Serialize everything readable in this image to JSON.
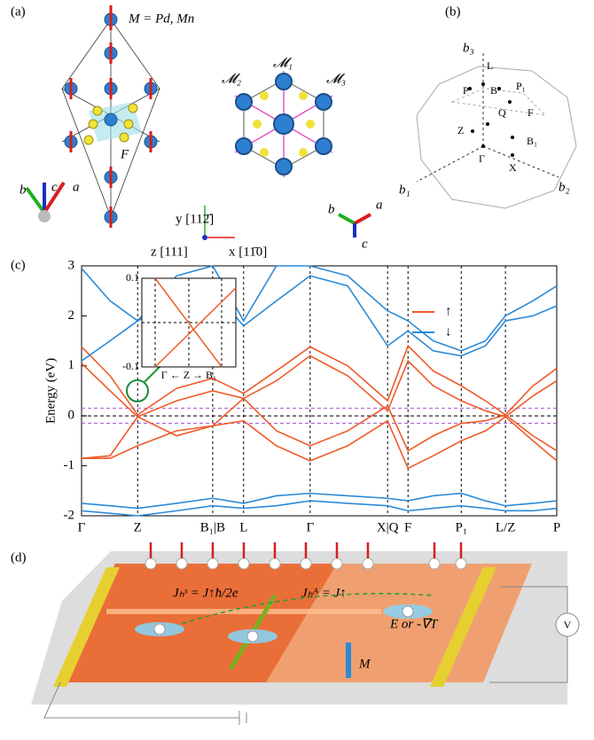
{
  "panels": {
    "a": {
      "label": "(a)",
      "formula": "M = Pd, Mn",
      "site": "F",
      "axes_left": [
        "b",
        "c",
        "a"
      ],
      "axes_mid": [
        "y [112̄]",
        "z [111]",
        "x [11̄0]"
      ],
      "sites": [
        "𝓜₁",
        "𝓜₂",
        "𝓜₃"
      ],
      "axes_right": [
        "b",
        "a",
        "c"
      ]
    },
    "b": {
      "label": "(b)",
      "points": [
        "b₃",
        "L",
        "P",
        "B",
        "P₁",
        "Q",
        "F",
        "Z",
        "Γ",
        "B₁",
        "X",
        "b₁",
        "b₂"
      ]
    },
    "d": {
      "label": "(d)",
      "spin_hall": "Jₕˢ = J↑ħ/2e",
      "anomalous_hall": "Jₕᴬ = J↑",
      "drive": "E or -∇T",
      "magnetization": "M",
      "meter": "V"
    }
  },
  "chart_data": {
    "type": "line",
    "label": "(c)",
    "ylabel": "Energy (eV)",
    "x": [
      0,
      6,
      11.8,
      20,
      27.6,
      34.1,
      41,
      48.1,
      56,
      64.4,
      68.7,
      74,
      79.9,
      85,
      89.2,
      95,
      100
    ],
    "xlim": [
      0,
      100
    ],
    "xticks": [
      {
        "value": 0,
        "label": "Γ"
      },
      {
        "value": 11.8,
        "label": "Z"
      },
      {
        "value": 27.6,
        "label": "B₁|B"
      },
      {
        "value": 34.1,
        "label": "L"
      },
      {
        "value": 48.1,
        "label": "Γ"
      },
      {
        "value": 64.4,
        "label": "X|Q"
      },
      {
        "value": 68.7,
        "label": "F"
      },
      {
        "value": 79.9,
        "label": "P₁"
      },
      {
        "value": 89.2,
        "label": "L/Z"
      },
      {
        "value": 100,
        "label": "P"
      }
    ],
    "ylim": [
      -2,
      3
    ],
    "yticks": [
      -2,
      -1,
      0,
      1,
      2,
      3
    ],
    "reference_lines": [
      {
        "value": 0,
        "color": "#000000"
      },
      {
        "value": 0.15,
        "color": "#9b4fd0"
      },
      {
        "value": -0.15,
        "color": "#9b4fd0"
      }
    ],
    "series": [
      {
        "name": "↑",
        "color": "#f05a28",
        "values": [
          1.38,
          0.8,
          0.02,
          0.55,
          0.75,
          0.45,
          0.9,
          1.38,
          1.0,
          0.3,
          1.4,
          0.9,
          0.6,
          0.3,
          0.02,
          0.6,
          0.95
        ]
      },
      {
        "color": "#f05a28",
        "values": [
          1.05,
          0.5,
          -0.02,
          0.3,
          0.5,
          0.35,
          0.7,
          1.2,
          0.8,
          0.1,
          1.1,
          0.6,
          0.3,
          0.1,
          -0.02,
          0.4,
          0.7
        ]
      },
      {
        "color": "#f05a28",
        "values": [
          -0.85,
          -0.8,
          -0.02,
          -0.4,
          -0.2,
          0.35,
          -0.3,
          -0.6,
          -0.3,
          0.2,
          -0.7,
          -0.4,
          -0.15,
          -0.1,
          0.02,
          -0.4,
          -0.7
        ]
      },
      {
        "color": "#f05a28",
        "values": [
          -0.85,
          -0.85,
          -0.6,
          -0.3,
          -0.2,
          -0.1,
          -0.6,
          -0.9,
          -0.6,
          -0.1,
          -1.05,
          -0.8,
          -0.5,
          -0.3,
          -0.02,
          -0.5,
          -0.9
        ]
      },
      {
        "name": "↓",
        "color": "#2b8ad8",
        "values": [
          2.95,
          2.3,
          1.9,
          2.8,
          3.0,
          1.9,
          3.0,
          3.0,
          2.8,
          2.1,
          1.9,
          1.5,
          1.3,
          1.5,
          2.0,
          2.3,
          2.6
        ]
      },
      {
        "color": "#2b8ad8",
        "values": [
          1.1,
          1.5,
          1.9,
          2.3,
          2.5,
          1.8,
          2.3,
          2.8,
          2.6,
          1.4,
          1.7,
          1.3,
          1.2,
          1.4,
          1.9,
          2.0,
          2.2
        ]
      },
      {
        "color": "#2b8ad8",
        "values": [
          -1.9,
          -1.95,
          -2.0,
          -1.9,
          -1.8,
          -1.85,
          -1.8,
          -1.7,
          -1.75,
          -1.8,
          -1.9,
          -1.85,
          -1.8,
          -1.85,
          -1.9,
          -1.9,
          -1.85
        ]
      },
      {
        "color": "#2b8ad8",
        "values": [
          -1.75,
          -1.8,
          -1.85,
          -1.75,
          -1.65,
          -1.75,
          -1.6,
          -1.55,
          -1.6,
          -1.65,
          -1.7,
          -1.6,
          -1.55,
          -1.7,
          -1.8,
          -1.75,
          -1.7
        ]
      }
    ],
    "inset": {
      "ylim": [
        -0.1,
        0.1
      ],
      "yticks": [
        -0.1,
        0.1
      ],
      "xlabel": "Γ ← Z → B₁"
    }
  }
}
